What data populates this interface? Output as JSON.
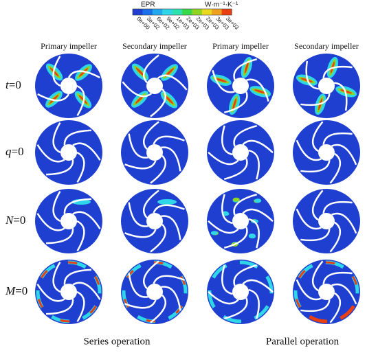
{
  "colorbar": {
    "title": "EPR",
    "unit": "W·m⁻¹·K⁻¹",
    "labels": [
      "0e+00",
      "3e+02",
      "6e+02",
      "9e+02",
      "1e+03",
      "2e+03",
      "2e+03",
      "2e+03",
      "3e+03",
      "3e+03"
    ]
  },
  "columns": [
    "Primary impeller",
    "Secondary impeller",
    "Primary impeller",
    "Secondary impeller"
  ],
  "rows": [
    {
      "var": "t",
      "eq": "=0"
    },
    {
      "var": "q",
      "eq": "=0"
    },
    {
      "var": "N",
      "eq": "=0"
    },
    {
      "var": "M",
      "eq": "=0"
    }
  ],
  "groups": [
    "Series operation",
    "Parallel operation"
  ]
}
